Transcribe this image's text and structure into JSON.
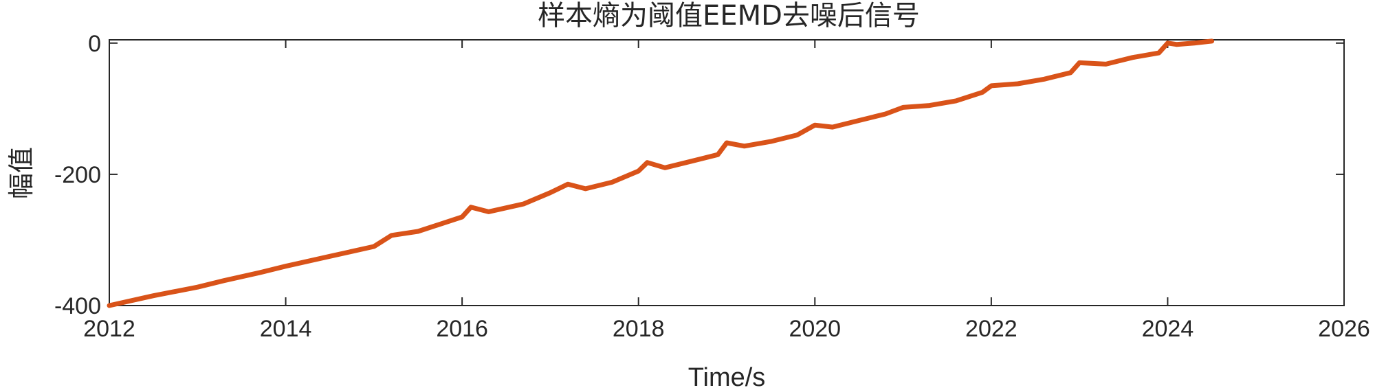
{
  "chart_data": {
    "type": "line",
    "title": "样本熵为阈值EEMD去噪后信号",
    "xlabel": "Time/s",
    "ylabel": "幅值",
    "xlim": [
      2012,
      2026
    ],
    "ylim": [
      -400,
      5
    ],
    "xticks": [
      2012,
      2014,
      2016,
      2018,
      2020,
      2022,
      2024,
      2026
    ],
    "yticks": [
      0,
      -200,
      -400
    ],
    "grid": false,
    "series": [
      {
        "color": "#D95319",
        "x": [
          2012.0,
          2012.5,
          2013.0,
          2013.3,
          2013.7,
          2014.0,
          2014.5,
          2015.0,
          2015.2,
          2015.5,
          2016.0,
          2016.1,
          2016.3,
          2016.7,
          2017.0,
          2017.2,
          2017.4,
          2017.7,
          2018.0,
          2018.1,
          2018.3,
          2018.6,
          2018.9,
          2019.0,
          2019.2,
          2019.5,
          2019.8,
          2020.0,
          2020.2,
          2020.5,
          2020.8,
          2021.0,
          2021.3,
          2021.6,
          2021.9,
          2022.0,
          2022.3,
          2022.6,
          2022.9,
          2023.0,
          2023.3,
          2023.6,
          2023.9,
          2024.0,
          2024.1,
          2024.3,
          2024.5
        ],
        "y": [
          -400,
          -385,
          -372,
          -362,
          -350,
          -340,
          -325,
          -310,
          -293,
          -287,
          -265,
          -250,
          -257,
          -245,
          -228,
          -215,
          -222,
          -212,
          -195,
          -182,
          -190,
          -180,
          -170,
          -152,
          -157,
          -150,
          -140,
          -125,
          -128,
          -118,
          -108,
          -98,
          -95,
          -88,
          -75,
          -65,
          -62,
          -55,
          -45,
          -30,
          -32,
          -22,
          -15,
          0,
          -2,
          0,
          3
        ]
      }
    ]
  }
}
